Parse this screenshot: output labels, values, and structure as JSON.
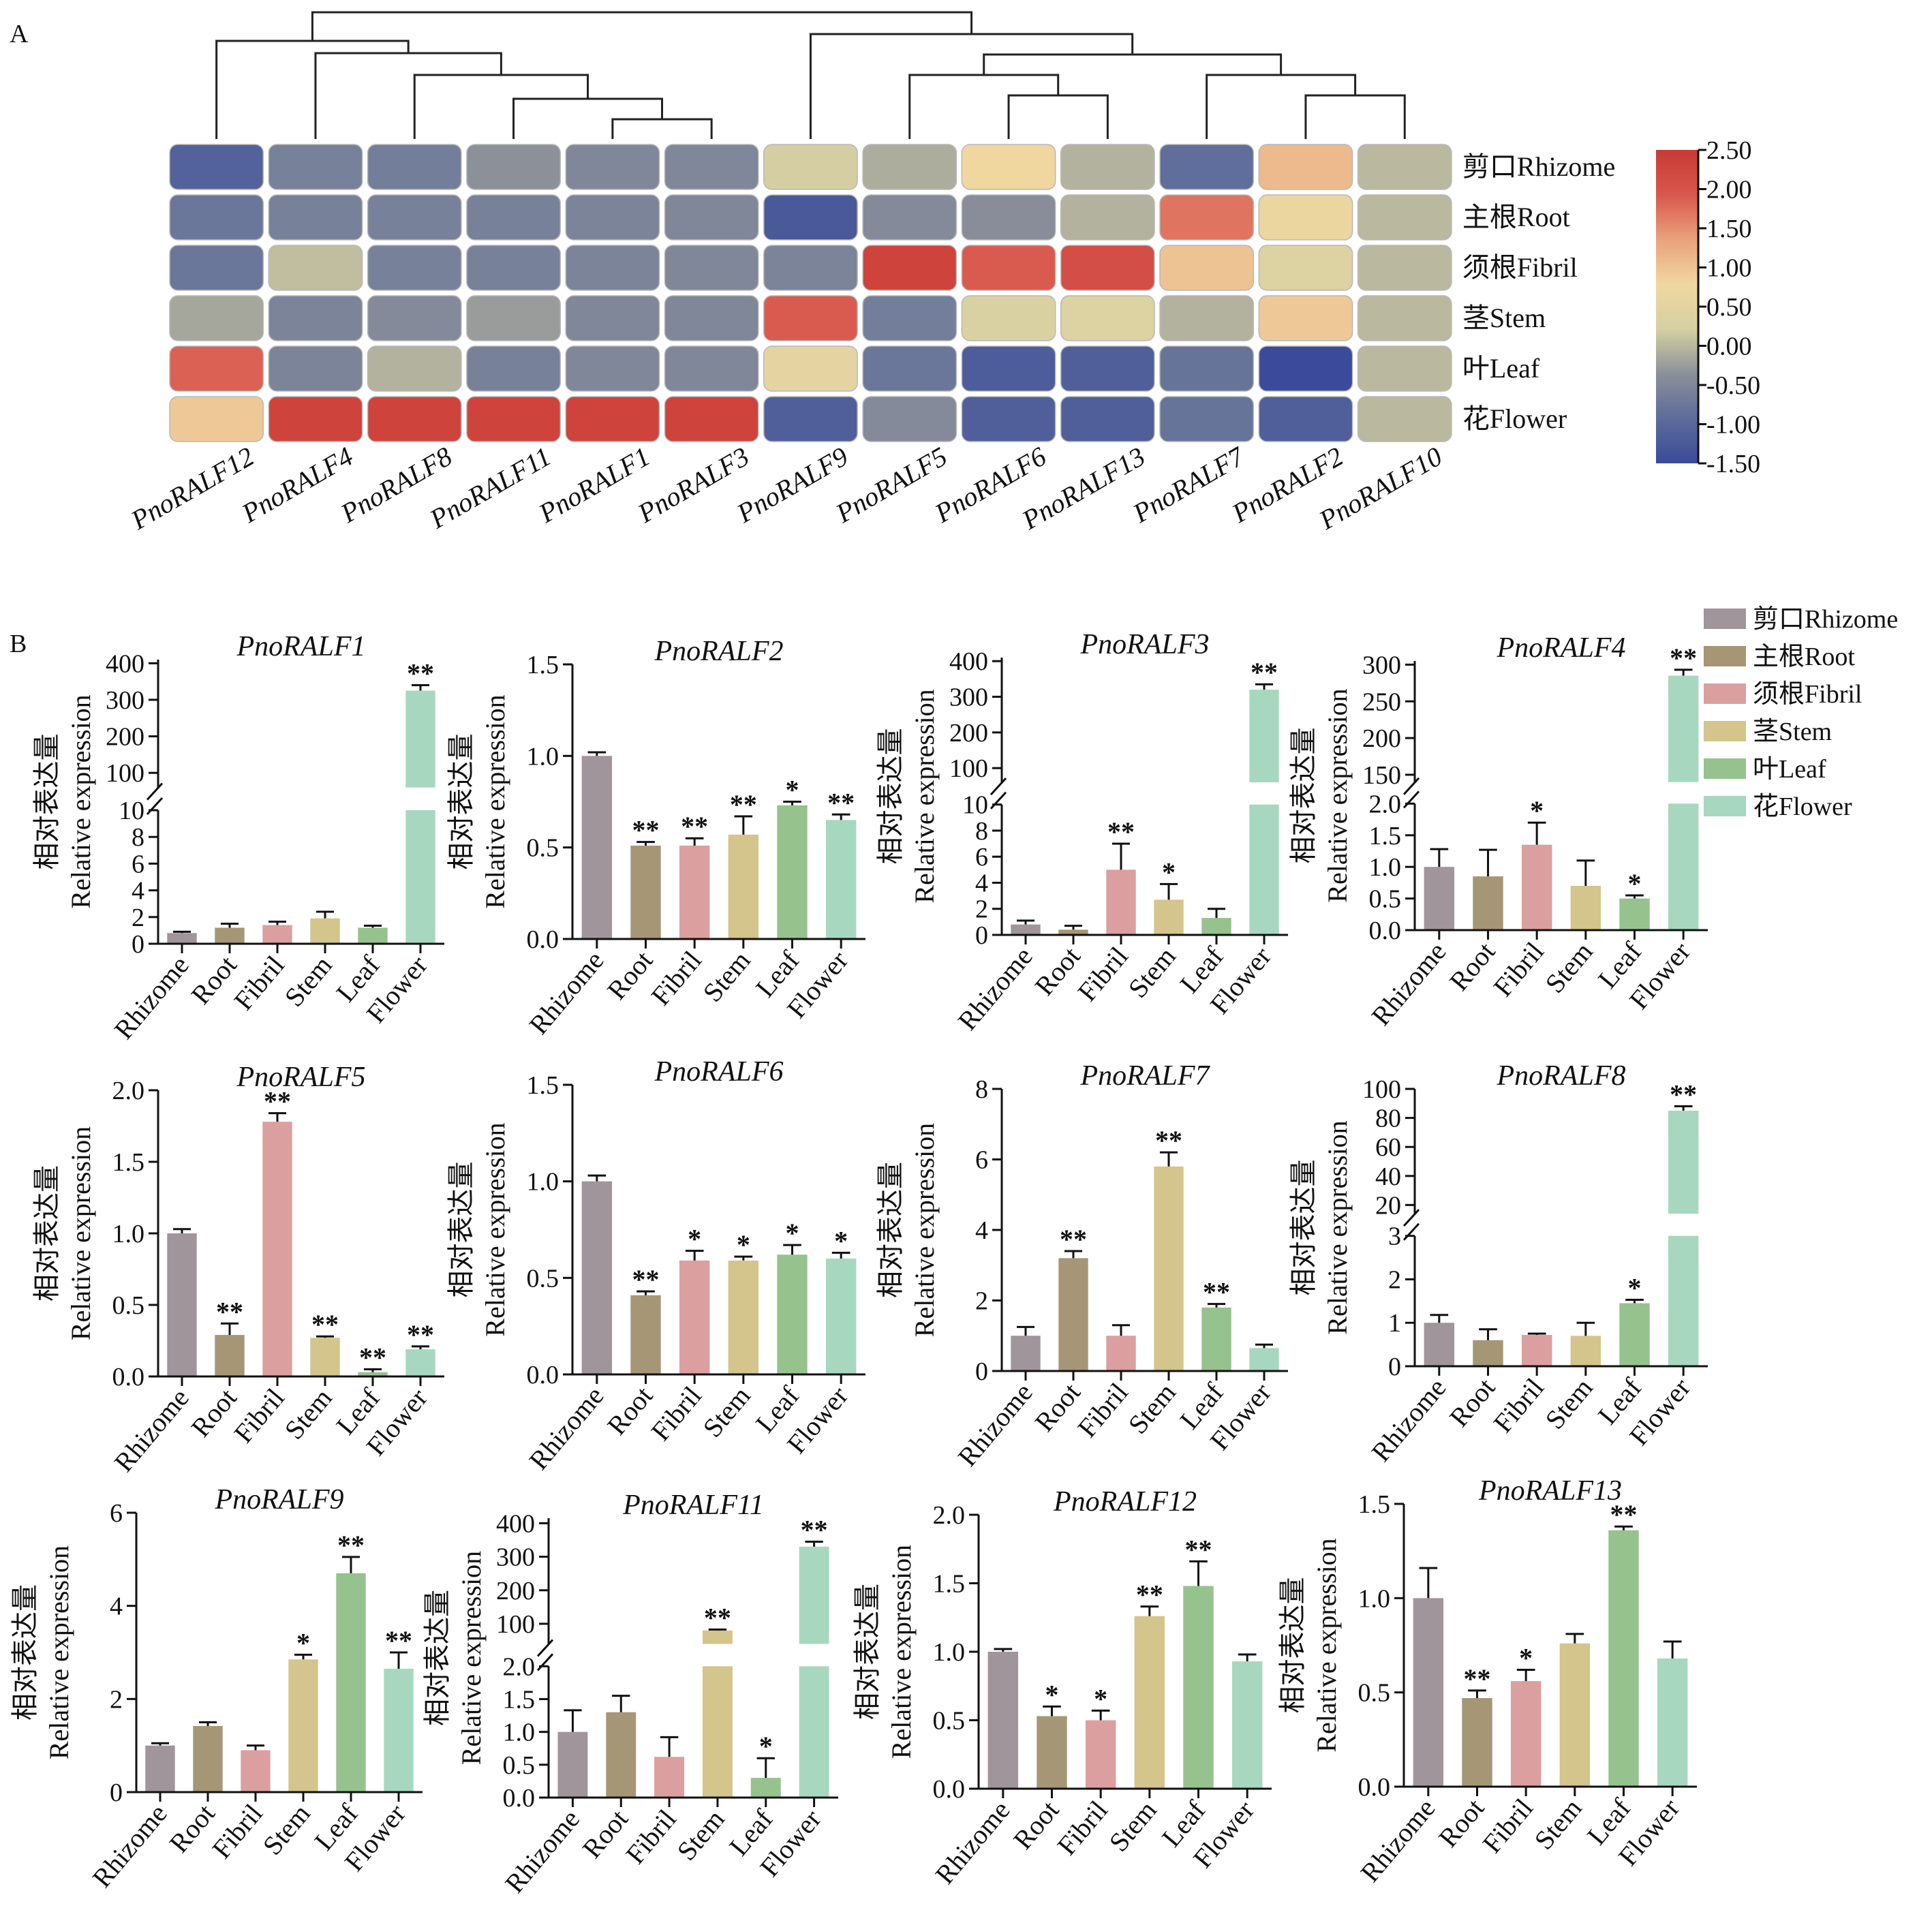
{
  "panel_labels": [
    "A",
    "B"
  ],
  "colors": {
    "cbar_stops": [
      "#3b4a9a",
      "#5d6c9a",
      "#8b9099",
      "#d6d0a2",
      "#f0d7a0",
      "#e9a27c",
      "#d8574e",
      "#c83a33"
    ],
    "bars": [
      "#a0959a",
      "#a59676",
      "#db9f9f",
      "#d3c58b",
      "#96c28e",
      "#a7d8bf"
    ],
    "ink": "#111111"
  },
  "heatmap": {
    "genes": [
      "PnoRALF12",
      "PnoRALF4",
      "PnoRALF8",
      "PnoRALF11",
      "PnoRALF1",
      "PnoRALF3",
      "PnoRALF9",
      "PnoRALF5",
      "PnoRALF6",
      "PnoRALF13",
      "PnoRALF7",
      "PnoRALF2",
      "PnoRALF10"
    ],
    "tissues": [
      "剪口Rhizome",
      "主根Root",
      "须根Fibril",
      "茎Stem",
      "叶Leaf",
      "花Flower"
    ],
    "colorbar_ticks": [
      "2.50",
      "2.00",
      "1.50",
      "1.00",
      "0.50",
      "0.00",
      "-0.50",
      "-1.00",
      "-1.50"
    ]
  },
  "legend": [
    "剪口Rhizome",
    "主根Root",
    "须根Fibril",
    "茎Stem",
    "叶Leaf",
    "花Flower"
  ],
  "ylabel_cn": "相对表达量",
  "ylabel_en": "Relative expression",
  "categories": [
    "Rhizome",
    "Root",
    "Fibril",
    "Stem",
    "Leaf",
    "Flower"
  ],
  "chart_data": [
    {
      "type": "heatmap",
      "rows": [
        "剪口Rhizome",
        "主根Root",
        "须根Fibril",
        "茎Stem",
        "叶Leaf",
        "花Flower"
      ],
      "columns": [
        "PnoRALF12",
        "PnoRALF4",
        "PnoRALF8",
        "PnoRALF11",
        "PnoRALF1",
        "PnoRALF3",
        "PnoRALF9",
        "PnoRALF5",
        "PnoRALF6",
        "PnoRALF13",
        "PnoRALF7",
        "PnoRALF2",
        "PnoRALF10"
      ],
      "values": [
        [
          -1.1,
          -0.6,
          -0.65,
          -0.35,
          -0.5,
          -0.5,
          0.2,
          -0.1,
          0.8,
          -0.05,
          -0.9,
          1.1,
          0.0
        ],
        [
          -0.75,
          -0.6,
          -0.6,
          -0.6,
          -0.55,
          -0.5,
          -1.25,
          -0.45,
          -0.4,
          -0.05,
          1.7,
          0.7,
          0.0
        ],
        [
          -0.75,
          0.05,
          -0.6,
          -0.6,
          -0.55,
          -0.5,
          -0.55,
          2.3,
          1.9,
          2.1,
          1.0,
          0.35,
          0.0
        ],
        [
          -0.15,
          -0.55,
          -0.45,
          -0.25,
          -0.5,
          -0.5,
          1.9,
          -0.65,
          0.3,
          0.35,
          -0.05,
          0.95,
          0.0
        ],
        [
          1.85,
          -0.55,
          -0.05,
          -0.6,
          -0.5,
          -0.5,
          0.55,
          -0.75,
          -1.2,
          -1.15,
          -0.8,
          -1.5,
          0.0
        ],
        [
          0.95,
          2.3,
          2.3,
          2.3,
          2.3,
          2.3,
          -1.15,
          -0.45,
          -1.15,
          -1.15,
          -0.8,
          -1.15,
          0.0
        ]
      ],
      "vmin": -1.5,
      "vmax": 2.5
    },
    {
      "type": "bar",
      "title": "PnoRALF1",
      "categories": [
        "Rhizome",
        "Root",
        "Fibril",
        "Stem",
        "Leaf",
        "Flower"
      ],
      "values": [
        0.8,
        1.2,
        1.4,
        1.9,
        1.2,
        325
      ],
      "errors": [
        0.1,
        0.3,
        0.25,
        0.5,
        0.15,
        15
      ],
      "sig": [
        "",
        "",
        "",
        "",
        "",
        "**"
      ],
      "ylabel": "Relative expression",
      "axis_break": {
        "lower": [
          0,
          10
        ],
        "upper": [
          60,
          410
        ],
        "lower_ticks": [
          0,
          2,
          4,
          6,
          8,
          10
        ],
        "upper_ticks": [
          100,
          200,
          300,
          400
        ]
      }
    },
    {
      "type": "bar",
      "title": "PnoRALF2",
      "categories": [
        "Rhizome",
        "Root",
        "Fibril",
        "Stem",
        "Leaf",
        "Flower"
      ],
      "values": [
        1.0,
        0.51,
        0.51,
        0.57,
        0.73,
        0.65
      ],
      "errors": [
        0.02,
        0.02,
        0.04,
        0.1,
        0.02,
        0.03
      ],
      "sig": [
        "",
        "**",
        "**",
        "**",
        "*",
        "**"
      ],
      "ylabel": "Relative expression",
      "ylim": [
        0,
        1.5
      ],
      "ticks": [
        "0.0",
        "0.5",
        "1.0",
        "1.5"
      ]
    },
    {
      "type": "bar",
      "title": "PnoRALF3",
      "categories": [
        "Rhizome",
        "Root",
        "Fibril",
        "Stem",
        "Leaf",
        "Flower"
      ],
      "values": [
        0.8,
        0.4,
        5.0,
        2.7,
        1.3,
        320
      ],
      "errors": [
        0.3,
        0.3,
        2.0,
        1.2,
        0.7,
        15
      ],
      "sig": [
        "",
        "",
        "**",
        "*",
        "",
        "**"
      ],
      "ylabel": "Relative expression",
      "axis_break": {
        "lower": [
          0,
          10
        ],
        "upper": [
          60,
          410
        ],
        "lower_ticks": [
          0,
          2,
          4,
          6,
          8,
          10
        ],
        "upper_ticks": [
          100,
          200,
          300,
          400
        ]
      }
    },
    {
      "type": "bar",
      "title": "PnoRALF4",
      "categories": [
        "Rhizome",
        "Root",
        "Fibril",
        "Stem",
        "Leaf",
        "Flower"
      ],
      "values": [
        1.0,
        0.85,
        1.35,
        0.7,
        0.5,
        285
      ],
      "errors": [
        0.28,
        0.42,
        0.35,
        0.4,
        0.05,
        8
      ],
      "sig": [
        "",
        "",
        "*",
        "",
        "*",
        "**"
      ],
      "ylabel": "Relative expression",
      "axis_break": {
        "lower": [
          0,
          2.0
        ],
        "upper": [
          140,
          305
        ],
        "lower_ticks": [
          "0.0",
          "0.5",
          "1.0",
          "1.5",
          "2.0"
        ],
        "upper_ticks": [
          150,
          200,
          250,
          300
        ]
      }
    },
    {
      "type": "bar",
      "title": "PnoRALF5",
      "categories": [
        "Rhizome",
        "Root",
        "Fibril",
        "Stem",
        "Leaf",
        "Flower"
      ],
      "values": [
        1.0,
        0.29,
        1.78,
        0.27,
        0.03,
        0.19
      ],
      "errors": [
        0.03,
        0.08,
        0.06,
        0.01,
        0.02,
        0.02
      ],
      "sig": [
        "",
        "**",
        "**",
        "**",
        "**",
        "**"
      ],
      "ylabel": "Relative expression",
      "ylim": [
        0,
        2.0
      ],
      "ticks": [
        "0.0",
        "0.5",
        "1.0",
        "1.5",
        "2.0"
      ]
    },
    {
      "type": "bar",
      "title": "PnoRALF6",
      "categories": [
        "Rhizome",
        "Root",
        "Fibril",
        "Stem",
        "Leaf",
        "Flower"
      ],
      "values": [
        1.0,
        0.41,
        0.59,
        0.59,
        0.62,
        0.6
      ],
      "errors": [
        0.03,
        0.02,
        0.05,
        0.02,
        0.05,
        0.03
      ],
      "sig": [
        "",
        "**",
        "*",
        "*",
        "*",
        "*"
      ],
      "ylabel": "Relative expression",
      "ylim": [
        0,
        1.5
      ],
      "ticks": [
        "0.0",
        "0.5",
        "1.0",
        "1.5"
      ]
    },
    {
      "type": "bar",
      "title": "PnoRALF7",
      "categories": [
        "Rhizome",
        "Root",
        "Fibril",
        "Stem",
        "Leaf",
        "Flower"
      ],
      "values": [
        1.0,
        3.2,
        1.0,
        5.8,
        1.8,
        0.65
      ],
      "errors": [
        0.25,
        0.2,
        0.3,
        0.4,
        0.1,
        0.1
      ],
      "sig": [
        "",
        "**",
        "",
        "**",
        "**",
        ""
      ],
      "ylabel": "Relative expression",
      "ylim": [
        0,
        8
      ],
      "ticks": [
        "0",
        "2",
        "4",
        "6",
        "8"
      ]
    },
    {
      "type": "bar",
      "title": "PnoRALF8",
      "categories": [
        "Rhizome",
        "Root",
        "Fibril",
        "Stem",
        "Leaf",
        "Flower"
      ],
      "values": [
        1.0,
        0.6,
        0.72,
        0.7,
        1.45,
        85
      ],
      "errors": [
        0.18,
        0.25,
        0.03,
        0.3,
        0.08,
        3
      ],
      "sig": [
        "",
        "",
        "",
        "",
        "*",
        "**"
      ],
      "ylabel": "Relative expression",
      "axis_break": {
        "lower": [
          0,
          3
        ],
        "upper": [
          14,
          100
        ],
        "lower_ticks": [
          0,
          1,
          2,
          3
        ],
        "upper_ticks": [
          20,
          40,
          60,
          80,
          100
        ]
      }
    },
    {
      "type": "bar",
      "title": "PnoRALF9",
      "categories": [
        "Rhizome",
        "Root",
        "Fibril",
        "Stem",
        "Leaf",
        "Flower"
      ],
      "values": [
        1.0,
        1.42,
        0.9,
        2.85,
        4.7,
        2.65
      ],
      "errors": [
        0.05,
        0.08,
        0.1,
        0.1,
        0.35,
        0.35
      ],
      "sig": [
        "",
        "",
        "",
        "*",
        "**",
        "**"
      ],
      "ylabel": "Relative expression",
      "ylim": [
        0,
        6
      ],
      "ticks": [
        "0",
        "2",
        "4",
        "6"
      ]
    },
    {
      "type": "bar",
      "title": "PnoRALF11",
      "categories": [
        "Rhizome",
        "Root",
        "Fibril",
        "Stem",
        "Leaf",
        "Flower"
      ],
      "values": [
        1.0,
        1.3,
        0.62,
        80,
        0.3,
        330
      ],
      "errors": [
        0.33,
        0.25,
        0.3,
        3,
        0.3,
        15
      ],
      "sig": [
        "",
        "",
        "",
        "**",
        "*",
        "**"
      ],
      "ylabel": "Relative expression",
      "axis_break": {
        "lower": [
          0,
          2.0
        ],
        "upper": [
          40,
          415
        ],
        "lower_ticks": [
          "0.0",
          "0.5",
          "1.0",
          "1.5",
          "2.0"
        ],
        "upper_ticks": [
          100,
          200,
          300,
          400
        ]
      }
    },
    {
      "type": "bar",
      "title": "PnoRALF12",
      "categories": [
        "Rhizome",
        "Root",
        "Fibril",
        "Stem",
        "Leaf",
        "Flower"
      ],
      "values": [
        1.0,
        0.53,
        0.5,
        1.26,
        1.48,
        0.93
      ],
      "errors": [
        0.02,
        0.07,
        0.07,
        0.07,
        0.18,
        0.05
      ],
      "sig": [
        "",
        "*",
        "*",
        "**",
        "**",
        ""
      ],
      "ylabel": "Relative expression",
      "ylim": [
        0,
        2.0
      ],
      "ticks": [
        "0.0",
        "0.5",
        "1.0",
        "1.5",
        "2.0"
      ]
    },
    {
      "type": "bar",
      "title": "PnoRALF13",
      "categories": [
        "Rhizome",
        "Root",
        "Fibril",
        "Stem",
        "Leaf",
        "Flower"
      ],
      "values": [
        1.0,
        0.47,
        0.56,
        0.76,
        1.36,
        0.68
      ],
      "errors": [
        0.16,
        0.04,
        0.06,
        0.05,
        0.02,
        0.09
      ],
      "sig": [
        "",
        "**",
        "*",
        "",
        "**",
        ""
      ],
      "ylabel": "Relative expression",
      "ylim": [
        0,
        1.5
      ],
      "ticks": [
        "0.0",
        "0.5",
        "1.0",
        "1.5"
      ]
    }
  ]
}
